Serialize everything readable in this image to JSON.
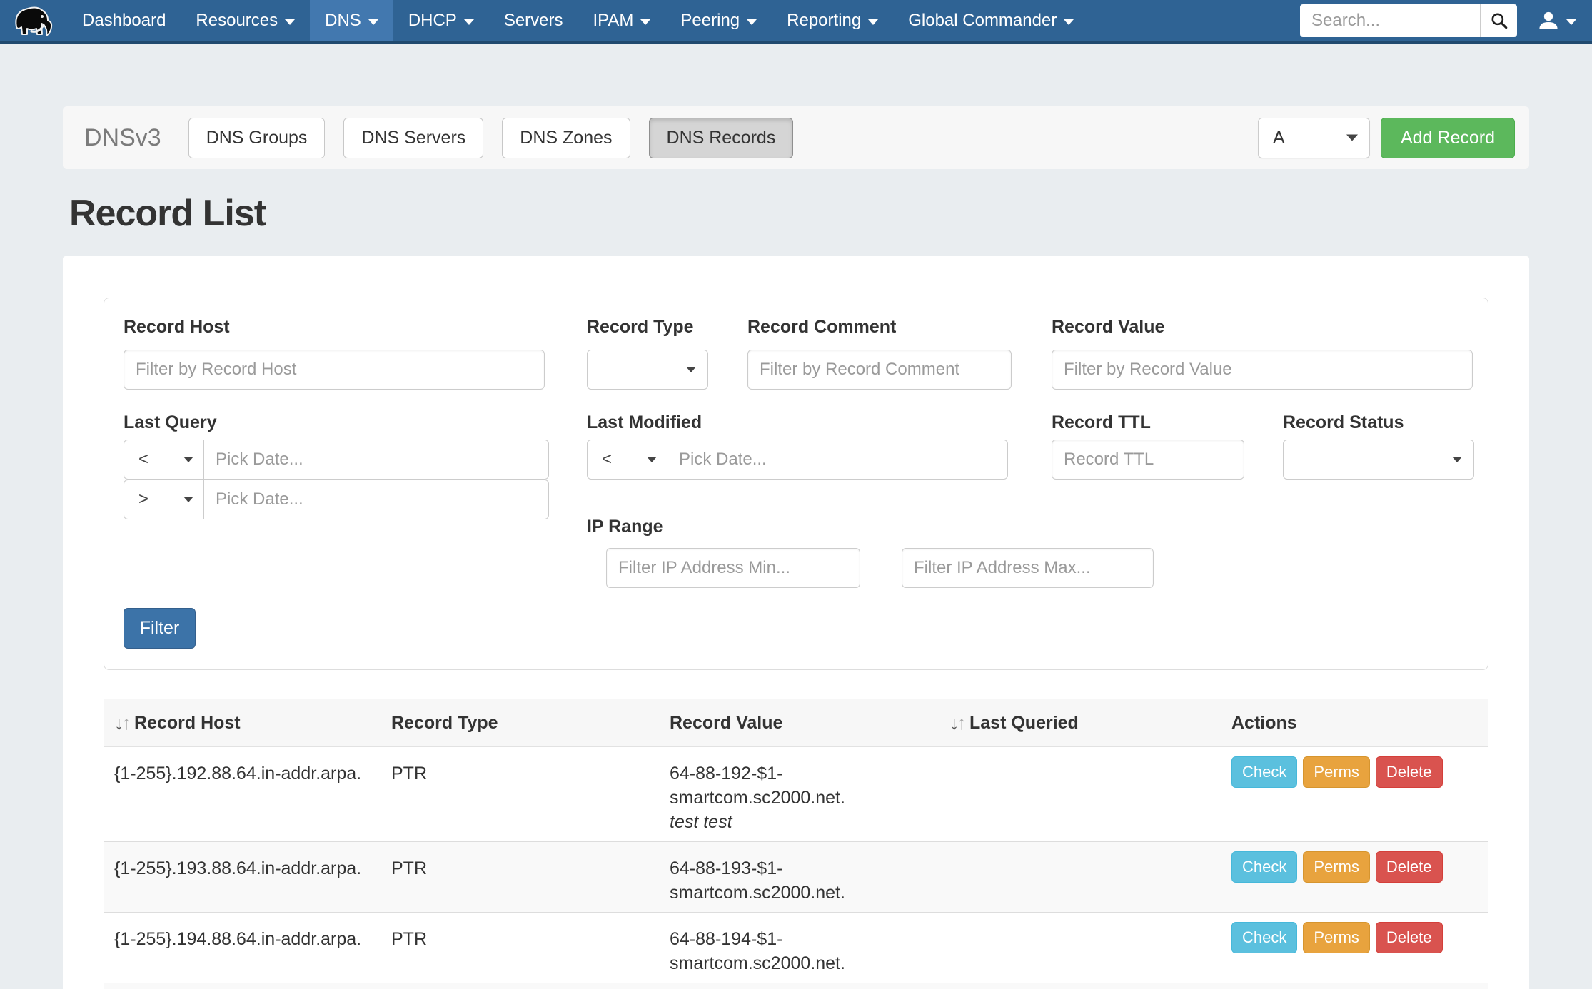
{
  "colors": {
    "navbar_bg": "#2f6394",
    "navbar_active_bg": "#4278af",
    "page_bg": "#e9edf0",
    "primary": "#3c73a8",
    "success": "#5cb85c",
    "info": "#5bc0de",
    "warning": "#e8a33e",
    "danger": "#d9534f"
  },
  "navbar": {
    "logo": "mammoth-logo",
    "items": [
      {
        "label": "Dashboard",
        "caret": false,
        "active": false
      },
      {
        "label": "Resources",
        "caret": true,
        "active": false
      },
      {
        "label": "DNS",
        "caret": true,
        "active": true
      },
      {
        "label": "DHCP",
        "caret": true,
        "active": false
      },
      {
        "label": "Servers",
        "caret": false,
        "active": false
      },
      {
        "label": "IPAM",
        "caret": true,
        "active": false
      },
      {
        "label": "Peering",
        "caret": true,
        "active": false
      },
      {
        "label": "Reporting",
        "caret": true,
        "active": false
      },
      {
        "label": "Global Commander",
        "caret": true,
        "active": false
      }
    ],
    "search": {
      "placeholder": "Search...",
      "value": ""
    }
  },
  "toolbar": {
    "title": "DNSv3",
    "tabs": [
      {
        "label": "DNS Groups",
        "active": false
      },
      {
        "label": "DNS Servers",
        "active": false
      },
      {
        "label": "DNS Zones",
        "active": false
      },
      {
        "label": "DNS Records",
        "active": true
      }
    ],
    "type_select_value": "A",
    "add_record_label": "Add Record"
  },
  "page": {
    "title": "Record List"
  },
  "filters": {
    "record_host": {
      "label": "Record Host",
      "placeholder": "Filter by Record Host",
      "value": ""
    },
    "record_type": {
      "label": "Record Type",
      "value": ""
    },
    "record_comment": {
      "label": "Record Comment",
      "placeholder": "Filter by Record Comment",
      "value": ""
    },
    "record_value": {
      "label": "Record Value",
      "placeholder": "Filter by Record Value",
      "value": ""
    },
    "last_query": {
      "label": "Last Query",
      "op_lt": "<",
      "op_gt": ">",
      "date_placeholder": "Pick Date..."
    },
    "last_modified": {
      "label": "Last Modified",
      "op_lt": "<",
      "date_placeholder": "Pick Date..."
    },
    "record_ttl": {
      "label": "Record TTL",
      "placeholder": "Record TTL",
      "value": ""
    },
    "record_status": {
      "label": "Record Status",
      "value": ""
    },
    "ip_range": {
      "label": "IP Range",
      "min_placeholder": "Filter IP Address Min...",
      "max_placeholder": "Filter IP Address Max...",
      "min_value": "",
      "max_value": ""
    },
    "submit_label": "Filter"
  },
  "table": {
    "headers": {
      "host": "Record Host",
      "type": "Record Type",
      "value": "Record Value",
      "last_queried": "Last Queried",
      "actions": "Actions"
    },
    "rows": [
      {
        "host": "{1-255}.192.88.64.in-addr.arpa.",
        "type": "PTR",
        "value": "64-88-192-$1-smartcom.sc2000.net.",
        "comment": "test test",
        "last_queried": "",
        "actions": [
          "Check",
          "Perms",
          "Delete"
        ]
      },
      {
        "host": "{1-255}.193.88.64.in-addr.arpa.",
        "type": "PTR",
        "value": "64-88-193-$1-smartcom.sc2000.net.",
        "comment": "",
        "last_queried": "",
        "actions": [
          "Check",
          "Perms",
          "Delete"
        ]
      },
      {
        "host": "{1-255}.194.88.64.in-addr.arpa.",
        "type": "PTR",
        "value": "64-88-194-$1-smartcom.sc2000.net.",
        "comment": "",
        "last_queried": "",
        "actions": [
          "Check",
          "Perms",
          "Delete"
        ]
      }
    ]
  }
}
